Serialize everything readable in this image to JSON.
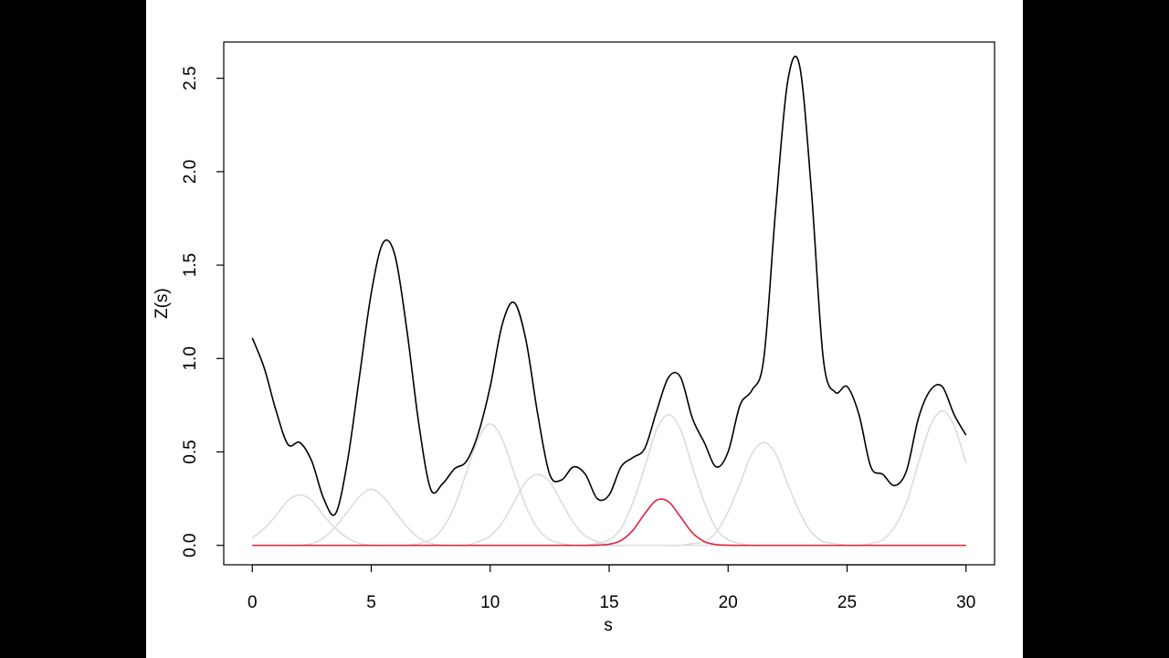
{
  "chart_data": {
    "type": "line",
    "x_label": "s",
    "y_label": "Z(s)",
    "x": [
      0,
      0.5,
      1,
      1.5,
      2,
      2.5,
      3,
      3.5,
      4,
      4.5,
      5,
      5.5,
      6,
      6.5,
      7,
      7.5,
      8,
      8.5,
      9,
      9.5,
      10,
      10.5,
      11,
      11.5,
      12,
      12.5,
      13,
      13.5,
      14,
      14.5,
      15,
      15.5,
      16,
      16.5,
      17,
      17.5,
      18,
      18.5,
      19,
      19.5,
      20,
      20.5,
      21,
      21.5,
      22,
      22.5,
      23,
      23.5,
      24,
      24.5,
      25,
      25.5,
      26,
      26.5,
      27,
      27.5,
      28,
      28.5,
      29,
      29.5,
      30
    ],
    "series": [
      {
        "color": "#dcdcdc",
        "values": [
          0.04,
          0.09,
          0.16,
          0.24,
          0.27,
          0.24,
          0.16,
          0.09,
          0.04,
          0.01,
          0,
          0,
          0,
          0,
          0,
          0,
          0,
          0,
          0,
          0,
          0,
          0,
          0,
          0,
          0,
          0,
          0,
          0,
          0,
          0,
          0,
          0,
          0,
          0,
          0,
          0,
          0,
          0,
          0,
          0,
          0,
          0,
          0,
          0,
          0,
          0,
          0,
          0,
          0,
          0,
          0,
          0,
          0,
          0,
          0,
          0,
          0,
          0,
          0,
          0,
          0
        ]
      },
      {
        "color": "#dcdcdc",
        "values": [
          0,
          0,
          0,
          0,
          0,
          0.01,
          0.04,
          0.1,
          0.18,
          0.26,
          0.3,
          0.26,
          0.18,
          0.1,
          0.04,
          0.01,
          0,
          0,
          0,
          0,
          0,
          0,
          0,
          0,
          0,
          0,
          0,
          0,
          0,
          0,
          0,
          0,
          0,
          0,
          0,
          0,
          0,
          0,
          0,
          0,
          0,
          0,
          0,
          0,
          0,
          0,
          0,
          0,
          0,
          0,
          0,
          0,
          0,
          0,
          0,
          0,
          0,
          0,
          0,
          0,
          0
        ]
      },
      {
        "color": "#dcdcdc",
        "values": [
          0,
          0,
          0,
          0,
          0,
          0,
          0,
          0,
          0,
          0,
          0,
          0,
          0,
          0,
          0.01,
          0.03,
          0.09,
          0.21,
          0.39,
          0.57,
          0.65,
          0.57,
          0.39,
          0.21,
          0.09,
          0.03,
          0.01,
          0,
          0,
          0,
          0,
          0,
          0,
          0,
          0,
          0,
          0,
          0,
          0,
          0,
          0,
          0,
          0,
          0,
          0,
          0,
          0,
          0,
          0,
          0,
          0,
          0,
          0,
          0,
          0,
          0,
          0,
          0,
          0,
          0,
          0
        ]
      },
      {
        "color": "#dcdcdc",
        "values": [
          0,
          0,
          0,
          0,
          0,
          0,
          0,
          0,
          0,
          0,
          0,
          0,
          0,
          0,
          0,
          0,
          0,
          0,
          0,
          0.02,
          0.05,
          0.12,
          0.23,
          0.34,
          0.38,
          0.34,
          0.23,
          0.12,
          0.05,
          0.02,
          0,
          0,
          0,
          0,
          0,
          0,
          0,
          0,
          0,
          0,
          0,
          0,
          0,
          0,
          0,
          0,
          0,
          0,
          0,
          0,
          0,
          0,
          0,
          0,
          0,
          0,
          0,
          0,
          0,
          0,
          0
        ]
      },
      {
        "color": "#dcdcdc",
        "values": [
          0,
          0,
          0,
          0,
          0,
          0,
          0,
          0,
          0,
          0,
          0,
          0,
          0,
          0,
          0,
          0,
          0,
          0,
          0,
          0,
          0,
          0,
          0,
          0,
          0,
          0,
          0,
          0,
          0,
          0.01,
          0.03,
          0.09,
          0.23,
          0.42,
          0.62,
          0.7,
          0.62,
          0.42,
          0.23,
          0.09,
          0.03,
          0.01,
          0,
          0,
          0,
          0,
          0,
          0,
          0,
          0,
          0,
          0,
          0,
          0,
          0,
          0,
          0,
          0,
          0,
          0,
          0
        ]
      },
      {
        "color": "#dcdcdc",
        "values": [
          0,
          0,
          0,
          0,
          0,
          0,
          0,
          0,
          0,
          0,
          0,
          0,
          0,
          0,
          0,
          0,
          0,
          0,
          0,
          0,
          0,
          0,
          0,
          0,
          0,
          0,
          0,
          0,
          0,
          0,
          0,
          0,
          0,
          0,
          0,
          0,
          0,
          0.01,
          0.02,
          0.07,
          0.18,
          0.33,
          0.49,
          0.55,
          0.49,
          0.33,
          0.18,
          0.07,
          0.02,
          0.01,
          0,
          0,
          0,
          0,
          0,
          0,
          0,
          0,
          0,
          0,
          0
        ]
      },
      {
        "color": "#dcdcdc",
        "values": [
          0,
          0,
          0,
          0,
          0,
          0,
          0,
          0,
          0,
          0,
          0,
          0,
          0,
          0,
          0,
          0,
          0,
          0,
          0,
          0,
          0,
          0,
          0,
          0,
          0,
          0,
          0,
          0,
          0,
          0,
          0,
          0,
          0,
          0,
          0,
          0,
          0,
          0,
          0,
          0,
          0,
          0,
          0,
          0,
          0,
          0,
          0,
          0,
          0,
          0,
          0,
          0,
          0.01,
          0.03,
          0.1,
          0.23,
          0.44,
          0.64,
          0.72,
          0.64,
          0.44
        ]
      },
      {
        "color": "#000000",
        "values": [
          1.11,
          0.95,
          0.72,
          0.54,
          0.55,
          0.45,
          0.25,
          0.17,
          0.45,
          0.9,
          1.35,
          1.62,
          1.55,
          1.15,
          0.65,
          0.3,
          0.33,
          0.41,
          0.45,
          0.6,
          0.85,
          1.18,
          1.3,
          1.1,
          0.7,
          0.38,
          0.35,
          0.42,
          0.38,
          0.25,
          0.27,
          0.42,
          0.47,
          0.52,
          0.72,
          0.9,
          0.9,
          0.68,
          0.55,
          0.42,
          0.5,
          0.75,
          0.83,
          1.0,
          1.8,
          2.48,
          2.57,
          1.9,
          1.0,
          0.82,
          0.85,
          0.7,
          0.42,
          0.38,
          0.32,
          0.4,
          0.68,
          0.83,
          0.85,
          0.7,
          0.59
        ]
      },
      {
        "color": "#e0223a",
        "values": [
          0,
          0,
          0,
          0,
          0,
          0,
          0,
          0,
          0,
          0,
          0,
          0,
          0,
          0,
          0,
          0,
          0,
          0,
          0,
          0,
          0,
          0,
          0,
          0,
          0,
          0,
          0,
          0,
          0,
          0.001,
          0.006,
          0.026,
          0.081,
          0.17,
          0.242,
          0.233,
          0.152,
          0.067,
          0.02,
          0.004,
          0.001,
          0,
          0,
          0,
          0,
          0,
          0,
          0,
          0,
          0,
          0,
          0,
          0,
          0,
          0,
          0,
          0,
          0,
          0,
          0,
          0
        ]
      }
    ],
    "xlim": [
      -1.2,
      31.2
    ],
    "ylim": [
      -0.104,
      2.694
    ],
    "xticks": [
      0,
      5,
      10,
      15,
      20,
      25,
      30
    ],
    "yticks": [
      {
        "value": 0,
        "label": "0.0"
      },
      0.5,
      {
        "value": 1,
        "label": "1.0"
      },
      1.5,
      {
        "value": 2,
        "label": "2.0"
      },
      2.5
    ]
  }
}
